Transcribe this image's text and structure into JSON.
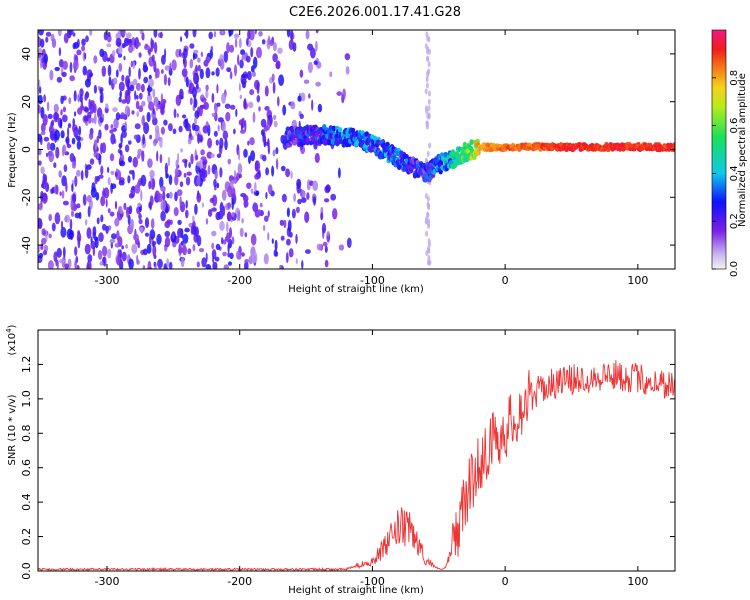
{
  "title": "C2E6.2026.001.17.41.G28",
  "chart_data": [
    {
      "type": "heatmap",
      "name": "spectrogram",
      "xlabel": "Height of straight line (km)",
      "ylabel": "Frequency (Hz)",
      "xlim": [
        -352,
        128
      ],
      "ylim": [
        -50,
        50
      ],
      "xticks": [
        -300,
        -200,
        -100,
        0,
        100
      ],
      "yticks": [
        -40,
        -20,
        0,
        20,
        40
      ],
      "colorbar": {
        "label": "Normalized spectral amplitude",
        "range": [
          0,
          1
        ],
        "ticks": [
          "0.0",
          "0.2",
          "0.4",
          "0.6",
          "0.8"
        ],
        "tick_values": [
          0.0,
          0.2,
          0.4,
          0.6,
          0.8
        ]
      },
      "signal_track": {
        "x": [
          -165,
          -150,
          -130,
          -110,
          -100,
          -90,
          -80,
          -70,
          -60,
          -50,
          -40,
          -30,
          -20,
          0,
          20,
          40,
          60,
          80,
          100,
          128
        ],
        "freq": [
          5,
          6,
          6,
          4,
          2,
          -1,
          -4,
          -7,
          -10,
          -6,
          -4,
          -1,
          1,
          1,
          1,
          1,
          1,
          1,
          1,
          1
        ],
        "amplitude": [
          0.35,
          0.35,
          0.4,
          0.45,
          0.4,
          0.45,
          0.4,
          0.35,
          0.35,
          0.45,
          0.55,
          0.7,
          0.85,
          0.9,
          0.9,
          0.95,
          0.95,
          0.95,
          0.95,
          0.95
        ]
      }
    },
    {
      "type": "line",
      "name": "snr",
      "xlabel": "Height of straight line (km)",
      "ylabel": "SNR (10 * v/v)",
      "y_multiplier": "(x10",
      "y_multiplier_exp": "4",
      "y_multiplier_close": ")",
      "xlim": [
        -352,
        128
      ],
      "ylim": [
        0,
        1.4
      ],
      "xticks": [
        -300,
        -200,
        -100,
        0,
        100
      ],
      "yticks": [
        "0.0",
        "0.2",
        "0.4",
        "0.6",
        "0.8",
        "1.0",
        "1.2"
      ],
      "ytick_values": [
        0.0,
        0.2,
        0.4,
        0.6,
        0.8,
        1.0,
        1.2
      ],
      "color": "#ee3333",
      "envelope": {
        "x": [
          -352,
          -120,
          -100,
          -90,
          -80,
          -70,
          -60,
          -50,
          -45,
          -40,
          -30,
          -20,
          -10,
          0,
          10,
          20,
          30,
          40,
          60,
          80,
          100,
          110,
          128
        ],
        "y": [
          0.01,
          0.01,
          0.06,
          0.15,
          0.27,
          0.24,
          0.07,
          0.01,
          0.02,
          0.12,
          0.42,
          0.62,
          0.75,
          0.82,
          0.92,
          1.02,
          1.07,
          1.1,
          1.12,
          1.14,
          1.12,
          1.1,
          1.08
        ]
      }
    }
  ]
}
